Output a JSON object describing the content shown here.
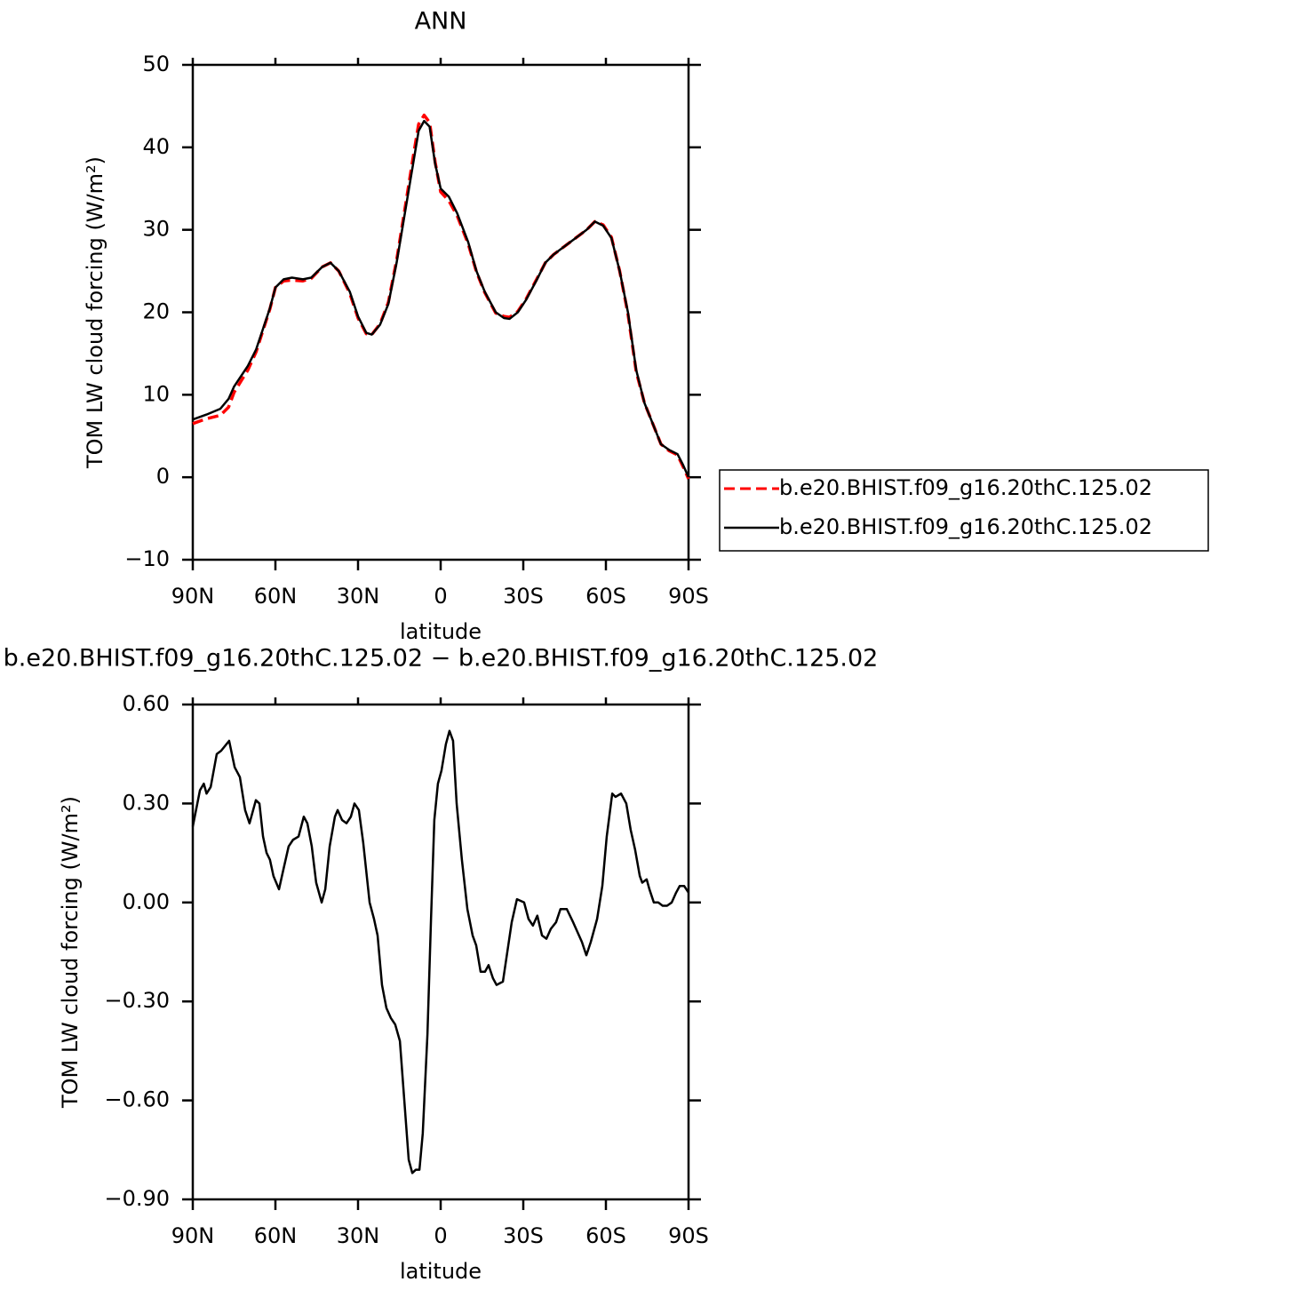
{
  "chart_data": [
    {
      "type": "line",
      "title": "ANN",
      "xlabel": "latitude",
      "ylabel": "TOM LW cloud forcing (W/m²)",
      "x": [
        90,
        85,
        80,
        77,
        75,
        70,
        67,
        65,
        62,
        60,
        57,
        54,
        50,
        47,
        43,
        40,
        37,
        33,
        30,
        27,
        25,
        22,
        19,
        16,
        13,
        10,
        8,
        6,
        4,
        2,
        0,
        -3,
        -6,
        -10,
        -13,
        -16,
        -20,
        -23,
        -25,
        -28,
        -31,
        -35,
        -38,
        -41,
        -45,
        -49,
        -53,
        -56,
        -59,
        -62,
        -65,
        -68,
        -71,
        -74,
        -77,
        -80,
        -83,
        -86,
        -88,
        -90
      ],
      "series": [
        {
          "name": "b.e20.BHIST.f09_g16.20thC.125.02",
          "color": "#ff0000",
          "dash": true,
          "values": [
            6.5,
            7.1,
            7.5,
            8.5,
            10.3,
            13,
            15.2,
            17.3,
            20.4,
            23,
            23.8,
            23.9,
            23.8,
            24.1,
            25.5,
            26,
            25,
            22.3,
            19.3,
            17.4,
            17.3,
            18.6,
            21.2,
            26.3,
            32.5,
            38.8,
            42.8,
            43.9,
            43,
            38.2,
            34.6,
            33.5,
            31.7,
            28.3,
            24.9,
            22.4,
            19.9,
            19.5,
            19.4,
            20.1,
            21.6,
            24.1,
            26,
            27,
            28,
            29,
            30,
            31,
            30.6,
            29.1,
            25,
            19.8,
            12.8,
            9,
            6.5,
            4,
            3.2,
            2.7,
            1.3,
            -0.2
          ]
        },
        {
          "name": "b.e20.BHIST.f09_g16.20thC.125.02",
          "color": "#000000",
          "dash": false,
          "values": [
            7,
            7.6,
            8.3,
            9.5,
            11,
            13.5,
            15.5,
            17.5,
            20.5,
            23,
            24,
            24.2,
            24,
            24.2,
            25.5,
            26,
            25,
            22.5,
            19.5,
            17.5,
            17.3,
            18.5,
            21,
            26,
            32,
            38,
            42,
            43.2,
            42.5,
            38,
            35,
            34,
            32,
            28.5,
            25,
            22.5,
            20,
            19.3,
            19.2,
            20,
            21.5,
            24,
            26,
            27,
            28,
            29,
            30,
            31,
            30.5,
            29,
            25,
            20,
            13,
            9,
            6.5,
            4,
            3.3,
            2.8,
            1.5,
            0
          ]
        }
      ],
      "xlim": [
        90,
        -90
      ],
      "xticks": [
        {
          "value": 90,
          "label": "90N"
        },
        {
          "value": 60,
          "label": "60N"
        },
        {
          "value": 30,
          "label": "30N"
        },
        0,
        {
          "value": -30,
          "label": "30S"
        },
        {
          "value": -60,
          "label": "60S"
        },
        {
          "value": -90,
          "label": "90S"
        }
      ],
      "ylim": [
        -10,
        50
      ],
      "yticks": [
        {
          "value": -10,
          "label": "−10"
        },
        0,
        10,
        20,
        30,
        40,
        50
      ],
      "legend": "right"
    },
    {
      "type": "line",
      "title": "b.e20.BHIST.f09_g16.20thC.125.02 − b.e20.BHIST.f09_g16.20thC.125.02",
      "xlabel": "latitude",
      "ylabel": "TOM LW cloud forcing (W/m²)",
      "x": [
        90,
        87.4,
        86,
        85,
        83.5,
        81.3,
        79.7,
        76.8,
        74.8,
        72.9,
        71,
        69.4,
        67.1,
        65.8,
        64.5,
        63.2,
        62,
        60.7,
        58.7,
        57.1,
        55.2,
        53.6,
        51.6,
        49.7,
        48.4,
        46.8,
        45.2,
        43.2,
        41.9,
        40.3,
        38.4,
        37.4,
        35.8,
        34.2,
        32.6,
        31.3,
        29.7,
        28.1,
        25.8,
        24.2,
        22.9,
        21.3,
        19.7,
        18.1,
        16.5,
        14.8,
        13.2,
        11.6,
        10.3,
        9,
        7.7,
        6.5,
        4.8,
        3.5,
        2.3,
        1,
        -0.3,
        -1.9,
        -3.2,
        -4.5,
        -5.8,
        -7.7,
        -9.7,
        -11.6,
        -12.9,
        -14.5,
        -16.1,
        -17.4,
        -19,
        -20.3,
        -22.6,
        -24.2,
        -25.8,
        -27.7,
        -30.3,
        -31.9,
        -33.5,
        -35.1,
        -36.8,
        -38.4,
        -40,
        -41.9,
        -43.5,
        -45.8,
        -48.1,
        -49.7,
        -51.3,
        -52.9,
        -54.5,
        -56.8,
        -58.7,
        -60.3,
        -62.3,
        -63.5,
        -65.5,
        -67.4,
        -69,
        -70.6,
        -72.3,
        -73.2,
        -74.8,
        -75.8,
        -77.4,
        -79,
        -80.6,
        -82.2,
        -83.9,
        -85.5,
        -86.8,
        -88.4,
        -90
      ],
      "values": [
        0.23,
        0.34,
        0.36,
        0.33,
        0.35,
        0.45,
        0.46,
        0.49,
        0.41,
        0.38,
        0.28,
        0.24,
        0.31,
        0.3,
        0.2,
        0.15,
        0.13,
        0.08,
        0.04,
        0.1,
        0.17,
        0.19,
        0.2,
        0.26,
        0.24,
        0.17,
        0.06,
        0.0,
        0.04,
        0.17,
        0.26,
        0.28,
        0.25,
        0.24,
        0.26,
        0.3,
        0.28,
        0.18,
        0.0,
        -0.05,
        -0.1,
        -0.25,
        -0.32,
        -0.35,
        -0.37,
        -0.42,
        -0.6,
        -0.78,
        -0.82,
        -0.81,
        -0.81,
        -0.7,
        -0.4,
        -0.05,
        0.25,
        0.36,
        0.4,
        0.48,
        0.52,
        0.49,
        0.3,
        0.13,
        -0.02,
        -0.1,
        -0.13,
        -0.21,
        -0.21,
        -0.19,
        -0.23,
        -0.25,
        -0.24,
        -0.15,
        -0.06,
        0.01,
        0.0,
        -0.05,
        -0.07,
        -0.04,
        -0.1,
        -0.11,
        -0.08,
        -0.06,
        -0.02,
        -0.02,
        -0.06,
        -0.09,
        -0.12,
        -0.16,
        -0.12,
        -0.05,
        0.05,
        0.2,
        0.33,
        0.32,
        0.33,
        0.3,
        0.22,
        0.16,
        0.08,
        0.06,
        0.07,
        0.04,
        0.0,
        0.0,
        -0.01,
        -0.01,
        0.0,
        0.03,
        0.05,
        0.05,
        0.03
      ],
      "color": "#000000",
      "xlim": [
        90,
        -90
      ],
      "xticks": [
        {
          "value": 90,
          "label": "90N"
        },
        {
          "value": 60,
          "label": "60N"
        },
        {
          "value": 30,
          "label": "30N"
        },
        0,
        {
          "value": -30,
          "label": "30S"
        },
        {
          "value": -60,
          "label": "60S"
        },
        {
          "value": -90,
          "label": "90S"
        }
      ],
      "ylim": [
        -0.9,
        0.6
      ],
      "yticks": [
        {
          "value": -0.9,
          "label": "−0.90"
        },
        {
          "value": -0.6,
          "label": "−0.60"
        },
        {
          "value": -0.3,
          "label": "−0.30"
        },
        {
          "value": 0,
          "label": "0.00"
        },
        {
          "value": 0.3,
          "label": "0.30"
        },
        {
          "value": 0.6,
          "label": "0.60"
        }
      ]
    }
  ]
}
